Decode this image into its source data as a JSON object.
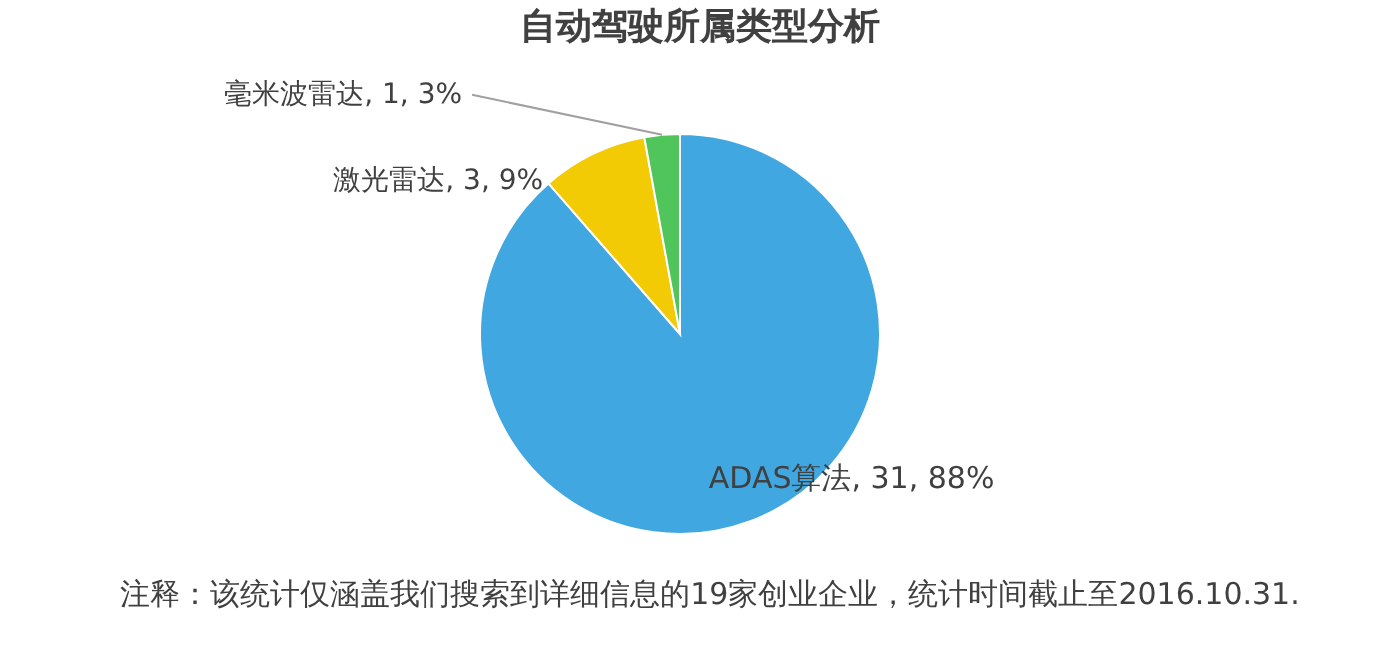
{
  "chart_data": {
    "type": "pie",
    "title": "自动驾驶所属类型分析",
    "categories": [
      "ADAS算法",
      "激光雷达",
      "毫米波雷达"
    ],
    "values": [
      31,
      3,
      1
    ],
    "value_labels": [
      "31, 88%",
      "3, 9%",
      "1, 3%"
    ],
    "colors": [
      "#41a7e1",
      "#f2cb05",
      "#4fc55b"
    ],
    "legend": false,
    "annotations": [
      "注释：该统计仅涵盖我们搜索到详细信息的19家创业企业，统计时间截止至2016.10.31."
    ]
  }
}
